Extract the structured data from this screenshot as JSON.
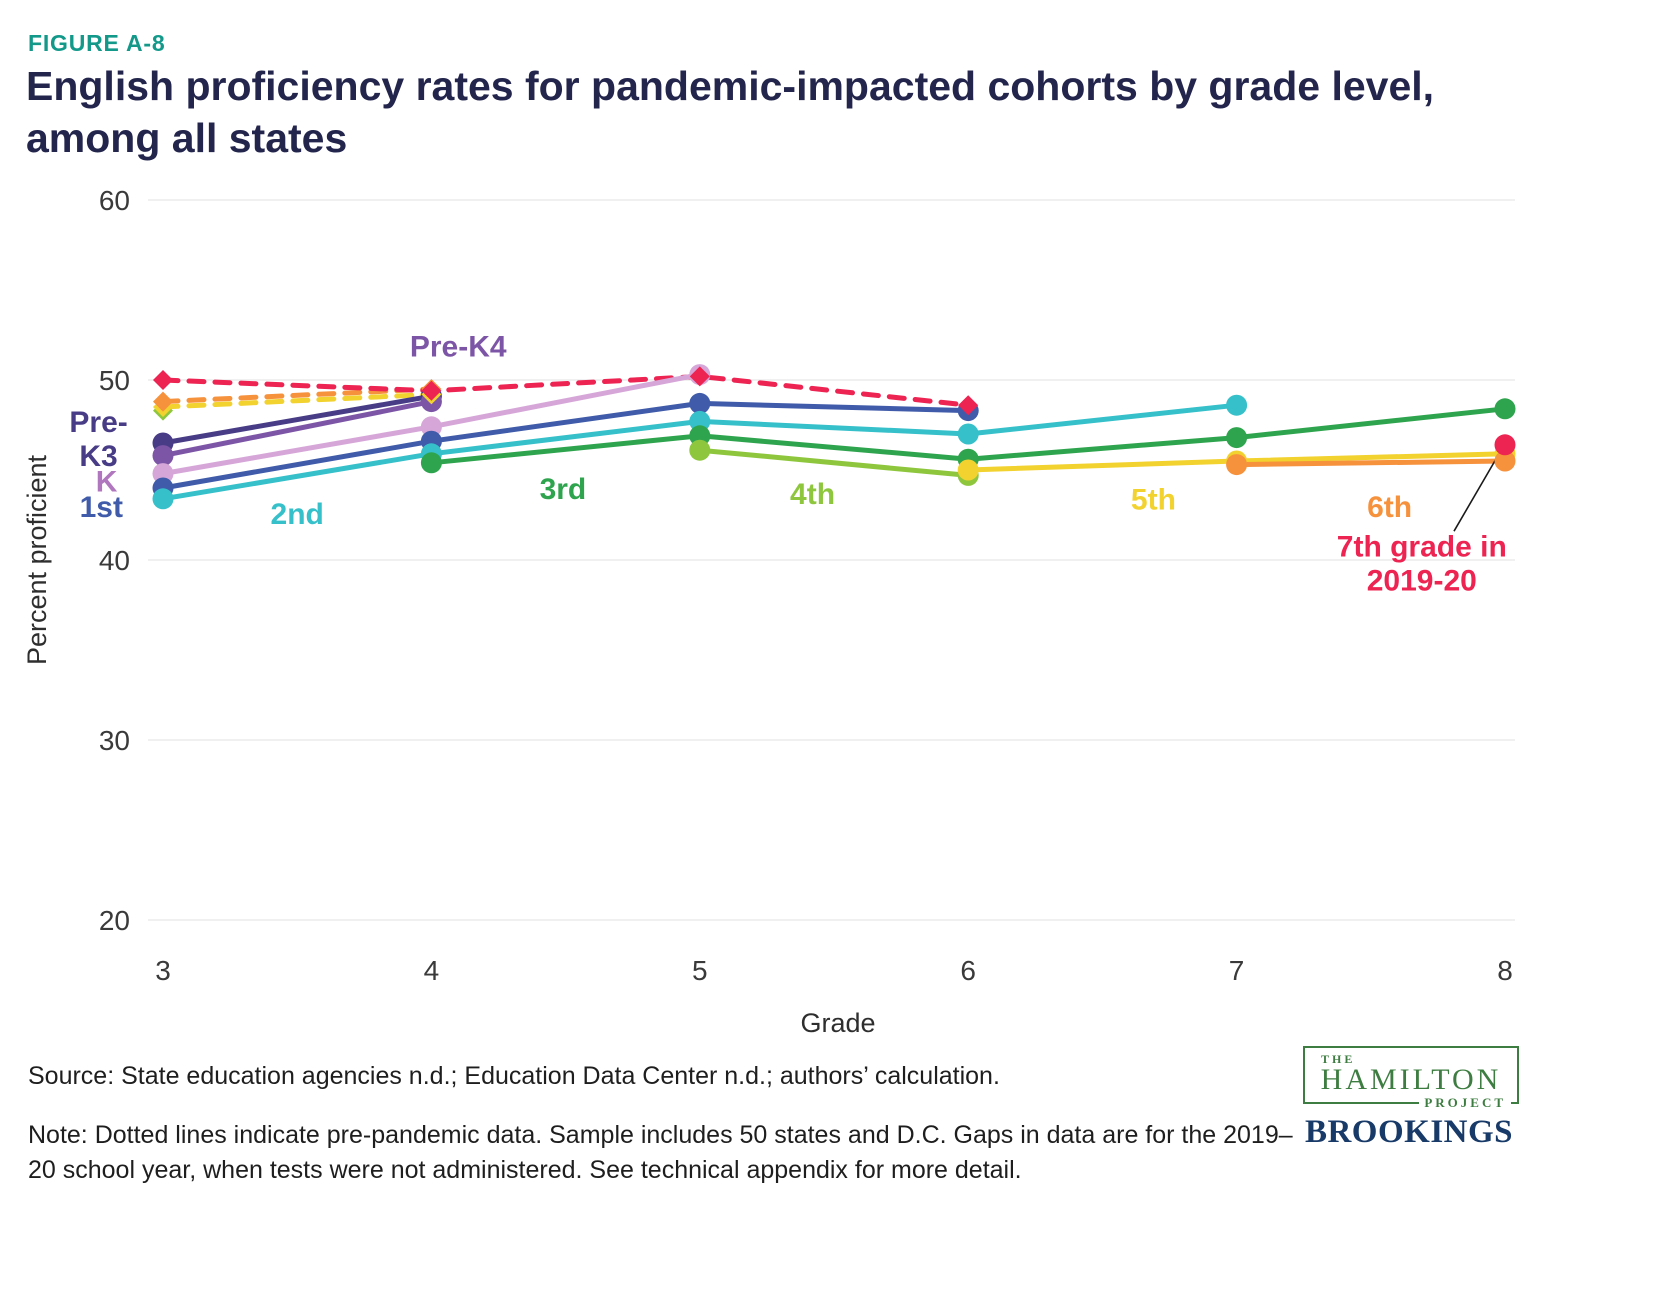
{
  "figure_label": "FIGURE A-8",
  "title": "English proficiency rates for pandemic-impacted cohorts by grade level, among all states",
  "source": "Source: State education agencies n.d.; Education Data Center n.d.; authors’ calculation.",
  "note": "Note: Dotted lines indicate pre-pandemic data. Sample includes 50 states and D.C. Gaps in data are for the 2019–20 school year, when tests were not administered. See technical appendix for more detail.",
  "logos": {
    "hamilton_the": "THE",
    "hamilton_name": "HAMILTON",
    "hamilton_project": "PROJECT",
    "brookings": "BROOKINGS"
  },
  "colors": {
    "figure_label": "#13998a",
    "title": "#23254c",
    "grid": "#ececec",
    "axis_text": "#3a3a3a",
    "callout": "#1a1a1a",
    "hamilton_green": "#3e7d41",
    "brookings_navy": "#183a68"
  },
  "chart_data": {
    "type": "line",
    "title": "English proficiency rates for pandemic-impacted cohorts by grade level, among all states",
    "xlabel": "Grade",
    "ylabel": "Percent proficient",
    "x_ticks": [
      3,
      4,
      5,
      6,
      7,
      8
    ],
    "y_ticks": [
      60,
      50,
      40,
      30,
      20
    ],
    "xlim": [
      2.7,
      8.15
    ],
    "ylim": [
      18,
      62
    ],
    "grid": "horizontal",
    "legend": "inline-labels",
    "note": "Dotted lines with diamond markers are pre-pandemic data; solid lines with circle markers are pandemic-era data. Gap at grade 7 for the 2019-20 cohort reflects the untested 2019-20 school year.",
    "series": [
      {
        "name": "Pre-K3",
        "color": "#473c85",
        "segments": [
          {
            "style": "solid",
            "marker": "circle",
            "points": [
              [
                3,
                46.5
              ],
              [
                4,
                49.1
              ]
            ]
          }
        ]
      },
      {
        "name": "Pre-K4",
        "color": "#7d55a6",
        "segments": [
          {
            "style": "solid",
            "marker": "circle",
            "points": [
              [
                3,
                45.8
              ],
              [
                4,
                48.8
              ]
            ]
          }
        ]
      },
      {
        "name": "K",
        "color": "#d6a6d8",
        "segments": [
          {
            "style": "solid",
            "marker": "circle",
            "points": [
              [
                3,
                44.8
              ],
              [
                4,
                47.4
              ],
              [
                5,
                50.3
              ]
            ]
          }
        ]
      },
      {
        "name": "1st",
        "color": "#3f5ba9",
        "segments": [
          {
            "style": "solid",
            "marker": "circle",
            "points": [
              [
                3,
                44.0
              ],
              [
                4,
                46.6
              ],
              [
                5,
                48.7
              ],
              [
                6,
                48.3
              ]
            ]
          }
        ]
      },
      {
        "name": "2nd",
        "color": "#35c0ca",
        "segments": [
          {
            "style": "solid",
            "marker": "circle",
            "points": [
              [
                3,
                43.4
              ],
              [
                4,
                45.9
              ],
              [
                5,
                47.7
              ],
              [
                6,
                47.0
              ],
              [
                7,
                48.6
              ]
            ]
          }
        ]
      },
      {
        "name": "3rd",
        "color": "#2fa44e",
        "segments": [
          {
            "style": "solid",
            "marker": "circle",
            "points": [
              [
                4,
                45.4
              ],
              [
                5,
                46.9
              ],
              [
                6,
                45.6
              ],
              [
                7,
                46.8
              ],
              [
                8,
                48.4
              ]
            ]
          }
        ]
      },
      {
        "name": "4th",
        "color": "#8ec73d",
        "segments": [
          {
            "style": "dashed",
            "marker": "diamond",
            "points": [
              [
                3,
                48.3
              ]
            ]
          },
          {
            "style": "solid",
            "marker": "circle",
            "points": [
              [
                5,
                46.1
              ],
              [
                6,
                44.7
              ]
            ]
          }
        ]
      },
      {
        "name": "5th",
        "color": "#f2d22e",
        "segments": [
          {
            "style": "dashed",
            "marker": "diamond",
            "points": [
              [
                3,
                48.5
              ],
              [
                4,
                49.2
              ]
            ]
          },
          {
            "style": "solid",
            "marker": "circle",
            "points": [
              [
                6,
                45.0
              ],
              [
                7,
                45.5
              ],
              [
                8,
                45.9
              ]
            ]
          }
        ]
      },
      {
        "name": "6th",
        "color": "#f6913c",
        "segments": [
          {
            "style": "dashed",
            "marker": "diamond",
            "points": [
              [
                3,
                48.8
              ],
              [
                4,
                49.5
              ]
            ]
          },
          {
            "style": "solid",
            "marker": "circle",
            "points": [
              [
                7,
                45.3
              ],
              [
                8,
                45.5
              ]
            ]
          }
        ]
      },
      {
        "name": "7th grade in 2019-20",
        "color": "#ed2352",
        "segments": [
          {
            "style": "dashed",
            "marker": "diamond",
            "points": [
              [
                3,
                50.0
              ],
              [
                4,
                49.4
              ],
              [
                5,
                50.2
              ],
              [
                6,
                48.6
              ]
            ]
          },
          {
            "style": "solid",
            "marker": "circle",
            "points": [
              [
                8,
                46.4
              ]
            ]
          }
        ]
      }
    ],
    "labels": [
      {
        "text": "Pre-K4",
        "g": 4.1,
        "v": 51.3,
        "color": "#7d55a6"
      },
      {
        "text": "Pre-\nK3",
        "g": 2.76,
        "v": 47.1,
        "color": "#473c85"
      },
      {
        "text": "K",
        "g": 2.79,
        "v": 43.8,
        "color": "#b077bf"
      },
      {
        "text": "1st",
        "g": 2.77,
        "v": 42.4,
        "color": "#3f5ba9"
      },
      {
        "text": "2nd",
        "g": 3.5,
        "v": 42.0,
        "color": "#35c0ca"
      },
      {
        "text": "3rd",
        "g": 4.49,
        "v": 43.4,
        "color": "#2fa44e"
      },
      {
        "text": "4th",
        "g": 5.42,
        "v": 43.1,
        "color": "#8ec73d"
      },
      {
        "text": "5th",
        "g": 6.69,
        "v": 42.8,
        "color": "#f2d22e"
      },
      {
        "text": "6th",
        "g": 7.57,
        "v": 42.4,
        "color": "#f6913c"
      },
      {
        "text": "7th grade in\n2019-20",
        "g": 7.69,
        "v": 40.2,
        "color": "#ed2352"
      }
    ],
    "callout": {
      "from_g": 7.97,
      "from_v": 45.7,
      "to_g": 7.81,
      "to_v": 41.6
    }
  }
}
